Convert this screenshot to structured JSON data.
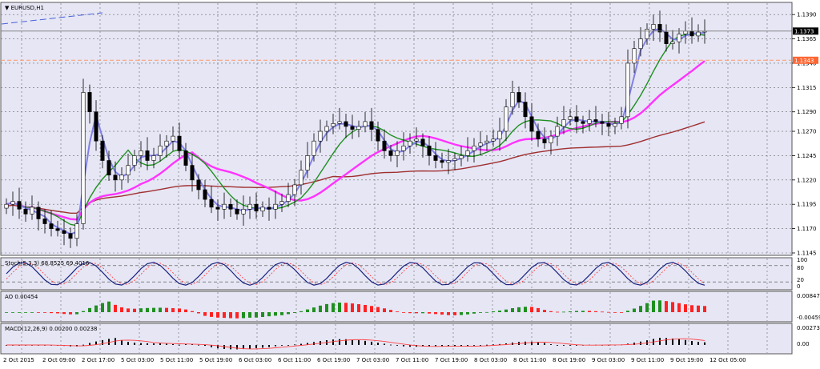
{
  "chart_title": "▼ EURUSD,H1",
  "colors": {
    "background": "#e6e6f5",
    "grid": "#6b6b6b",
    "bull_candle": "#ffffff",
    "bear_candle": "#000000",
    "ma_fast": "#8080e6",
    "ma_mid": "#1f8f1f",
    "ma_slow": "#ff33ff",
    "ma_long": "#a03030",
    "bid_line": "#ff9966",
    "stoch_main": "#1a237e",
    "stoch_signal": "#ff3333",
    "ao_up": "#1f8f1f",
    "ao_down": "#ff2222",
    "macd_hist": "#000000",
    "macd_signal": "#ff4444"
  },
  "price_axis": {
    "ticks": [
      "1.1390",
      "1.1365",
      "1.1340",
      "1.1315",
      "1.1290",
      "1.1270",
      "1.1245",
      "1.1220",
      "1.1195",
      "1.1170",
      "1.1145"
    ],
    "current_price": "1.1373",
    "bid_line_price": "1.1343"
  },
  "stoch": {
    "label": "Stoch(5,3,3) 68.8525 69.4016",
    "ticks": [
      "100",
      "80",
      "20",
      "0"
    ]
  },
  "ao": {
    "label": "AO 0.00454",
    "ticks": [
      "0.00847",
      "-0.00459"
    ]
  },
  "macd": {
    "label": "MACD(12,26,9) 0.00200 0.00238",
    "ticks": [
      "0.00273",
      "0.00"
    ]
  },
  "time_axis": {
    "labels": [
      "2 Oct 2015",
      "2 Oct 09:00",
      "2 Oct 17:00",
      "5 Oct 03:00",
      "5 Oct 11:00",
      "5 Oct 19:00",
      "6 Oct 03:00",
      "6 Oct 11:00",
      "6 Oct 19:00",
      "7 Oct 03:00",
      "7 Oct 11:00",
      "7 Oct 19:00",
      "8 Oct 03:00",
      "8 Oct 11:00",
      "8 Oct 19:00",
      "9 Oct 03:00",
      "9 Oct 11:00",
      "9 Oct 19:00",
      "12 Oct 05:00"
    ]
  },
  "chart_data": {
    "type": "candlestick",
    "symbol": "EURUSD",
    "timeframe": "H1",
    "ylim": [
      1.1145,
      1.14
    ],
    "close_series": [
      1.1195,
      1.1198,
      1.119,
      1.1185,
      1.1192,
      1.118,
      1.1175,
      1.117,
      1.1168,
      1.1165,
      1.116,
      1.1175,
      1.131,
      1.129,
      1.126,
      1.124,
      1.1225,
      1.122,
      1.1225,
      1.1235,
      1.1245,
      1.125,
      1.124,
      1.1245,
      1.1255,
      1.126,
      1.1265,
      1.125,
      1.1235,
      1.122,
      1.121,
      1.12,
      1.1192,
      1.119,
      1.1195,
      1.119,
      1.1185,
      1.119,
      1.1195,
      1.1188,
      1.1192,
      1.119,
      1.1195,
      1.1198,
      1.1205,
      1.1215,
      1.123,
      1.1245,
      1.126,
      1.127,
      1.1275,
      1.1278,
      1.128,
      1.1275,
      1.1272,
      1.1275,
      1.128,
      1.1272,
      1.126,
      1.125,
      1.1245,
      1.125,
      1.1255,
      1.126,
      1.1262,
      1.1255,
      1.1245,
      1.124,
      1.1238,
      1.124,
      1.1242,
      1.1245,
      1.125,
      1.1255,
      1.1258,
      1.126,
      1.1262,
      1.127,
      1.1295,
      1.131,
      1.13,
      1.1285,
      1.127,
      1.1262,
      1.1258,
      1.1265,
      1.1275,
      1.1282,
      1.1285,
      1.128,
      1.1278,
      1.1282,
      1.128,
      1.1278,
      1.1275,
      1.1278,
      1.1285,
      1.134,
      1.1355,
      1.1365,
      1.1375,
      1.138,
      1.1372,
      1.136,
      1.1362,
      1.137,
      1.1373,
      1.1368,
      1.1372,
      1.1373
    ]
  }
}
